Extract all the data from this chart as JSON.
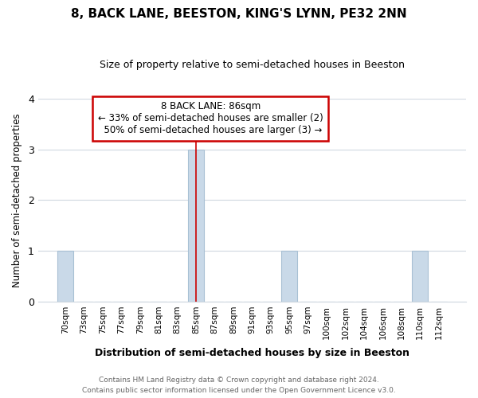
{
  "title": "8, BACK LANE, BEESTON, KING'S LYNN, PE32 2NN",
  "subtitle": "Size of property relative to semi-detached houses in Beeston",
  "xlabel": "Distribution of semi-detached houses by size in Beeston",
  "ylabel": "Number of semi-detached properties",
  "bins": [
    "70sqm",
    "73sqm",
    "75sqm",
    "77sqm",
    "79sqm",
    "81sqm",
    "83sqm",
    "85sqm",
    "87sqm",
    "89sqm",
    "91sqm",
    "93sqm",
    "95sqm",
    "97sqm",
    "100sqm",
    "102sqm",
    "104sqm",
    "106sqm",
    "108sqm",
    "110sqm",
    "112sqm"
  ],
  "counts": [
    1,
    0,
    0,
    0,
    0,
    0,
    0,
    3,
    0,
    0,
    0,
    0,
    1,
    0,
    0,
    0,
    0,
    0,
    0,
    1,
    0
  ],
  "bar_color": "#c9d9e8",
  "bar_edge_color": "#a8c0d4",
  "highlight_bar_index": 7,
  "highlight_line_color": "#cc0000",
  "ylim": [
    0,
    4
  ],
  "yticks": [
    0,
    1,
    2,
    3,
    4
  ],
  "property_size": "86sqm",
  "pct_smaller": 33,
  "count_smaller": 2,
  "pct_larger": 50,
  "count_larger": 3,
  "annotation_box_edge_color": "#cc0000",
  "footer_line1": "Contains HM Land Registry data © Crown copyright and database right 2024.",
  "footer_line2": "Contains public sector information licensed under the Open Government Licence v3.0.",
  "background_color": "#ffffff",
  "plot_background_color": "#ffffff",
  "grid_color": "#d0d8e0"
}
